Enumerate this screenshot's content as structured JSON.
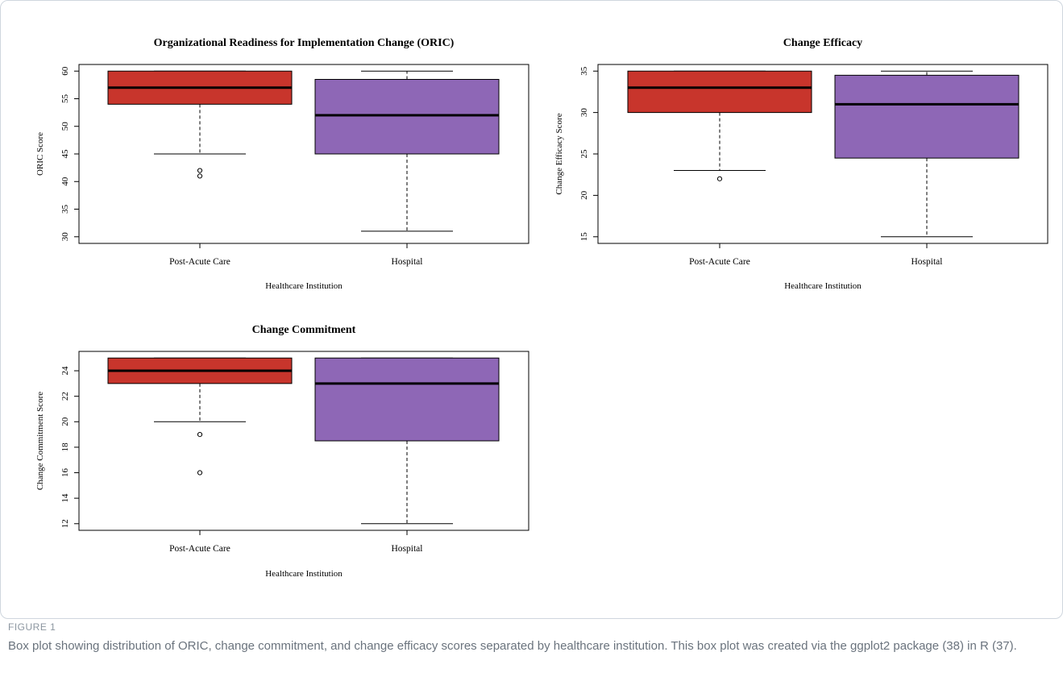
{
  "figure": {
    "label": "FIGURE 1",
    "caption": "Box plot showing distribution of ORIC, change commitment, and change efficacy scores separated by healthcare institution. This box plot was created via the ggplot2 package (38) in R (37)."
  },
  "colors": {
    "post_acute": "#c8352c",
    "hospital": "#8e67b6"
  },
  "chart_data": [
    {
      "type": "box",
      "title": "Organizational Readiness for Implementation Change (ORIC)",
      "xlabel": "Healthcare Institution",
      "ylabel": "ORIC Score",
      "categories": [
        "Post-Acute Care",
        "Hospital"
      ],
      "ylim": [
        30,
        60
      ],
      "yticks": [
        30,
        35,
        40,
        45,
        50,
        55,
        60
      ],
      "boxes": [
        {
          "whisker_low": 45,
          "q1": 54,
          "median": 57,
          "q3": 60,
          "whisker_high": 60,
          "outliers": [
            41,
            42
          ]
        },
        {
          "whisker_low": 31,
          "q1": 45,
          "median": 52,
          "q3": 58.5,
          "whisker_high": 60,
          "outliers": []
        }
      ]
    },
    {
      "type": "box",
      "title": "Change Efficacy",
      "xlabel": "Healthcare Institution",
      "ylabel": "Change Efficacy Score",
      "categories": [
        "Post-Acute Care",
        "Hospital"
      ],
      "ylim": [
        15,
        35
      ],
      "yticks": [
        15,
        20,
        25,
        30,
        35
      ],
      "boxes": [
        {
          "whisker_low": 23,
          "q1": 30,
          "median": 33,
          "q3": 35,
          "whisker_high": 35,
          "outliers": [
            22
          ]
        },
        {
          "whisker_low": 15,
          "q1": 24.5,
          "median": 31,
          "q3": 34.5,
          "whisker_high": 35,
          "outliers": []
        }
      ]
    },
    {
      "type": "box",
      "title": "Change Commitment",
      "xlabel": "Healthcare Institution",
      "ylabel": "Change Commitment Score",
      "categories": [
        "Post-Acute Care",
        "Hospital"
      ],
      "ylim": [
        12,
        25
      ],
      "yticks": [
        12,
        14,
        16,
        18,
        20,
        22,
        24
      ],
      "boxes": [
        {
          "whisker_low": 20,
          "q1": 23,
          "median": 24,
          "q3": 25,
          "whisker_high": 25,
          "outliers": [
            16,
            19
          ]
        },
        {
          "whisker_low": 12,
          "q1": 18.5,
          "median": 23,
          "q3": 25,
          "whisker_high": 25,
          "outliers": []
        }
      ]
    }
  ]
}
